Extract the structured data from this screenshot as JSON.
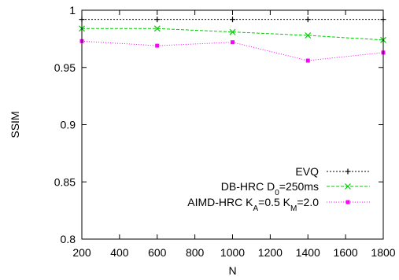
{
  "chart_data": {
    "type": "line",
    "title": "",
    "xlabel": "N",
    "ylabel": "SSIM",
    "xlim": [
      200,
      1800
    ],
    "ylim": [
      0.8,
      1.0
    ],
    "x_ticks": [
      "200",
      "400",
      "600",
      "800",
      "1000",
      "1200",
      "1400",
      "1600",
      "1800"
    ],
    "y_ticks": [
      "0.8",
      "0.85",
      "0.9",
      "0.95",
      "1"
    ],
    "grid": false,
    "legend_position": "bottom-right",
    "series": [
      {
        "name": "EVQ",
        "label_parts": [
          {
            "t": "EVQ",
            "sub": false
          }
        ],
        "color": "#000000",
        "marker": "plus",
        "x": [
          200,
          600,
          1000,
          1400,
          1800
        ],
        "y": [
          0.992,
          0.992,
          0.992,
          0.992,
          0.992
        ]
      },
      {
        "name": "DB-HRC D0=250ms",
        "label_parts": [
          {
            "t": "DB-HRC D",
            "sub": false
          },
          {
            "t": "0",
            "sub": true
          },
          {
            "t": "=250ms",
            "sub": false
          }
        ],
        "color": "#00cc00",
        "marker": "x",
        "x": [
          200,
          600,
          1000,
          1400,
          1800
        ],
        "y": [
          0.984,
          0.984,
          0.981,
          0.978,
          0.974
        ]
      },
      {
        "name": "AIMD-HRC KA=0.5 KM=2.0",
        "label_parts": [
          {
            "t": "AIMD-HRC K",
            "sub": false
          },
          {
            "t": "A",
            "sub": true
          },
          {
            "t": "=0.5 K",
            "sub": false
          },
          {
            "t": "M",
            "sub": true
          },
          {
            "t": "=2.0",
            "sub": false
          }
        ],
        "color": "#ff00ff",
        "marker": "square",
        "x": [
          200,
          600,
          1000,
          1400,
          1800
        ],
        "y": [
          0.973,
          0.969,
          0.972,
          0.956,
          0.963
        ]
      }
    ]
  }
}
